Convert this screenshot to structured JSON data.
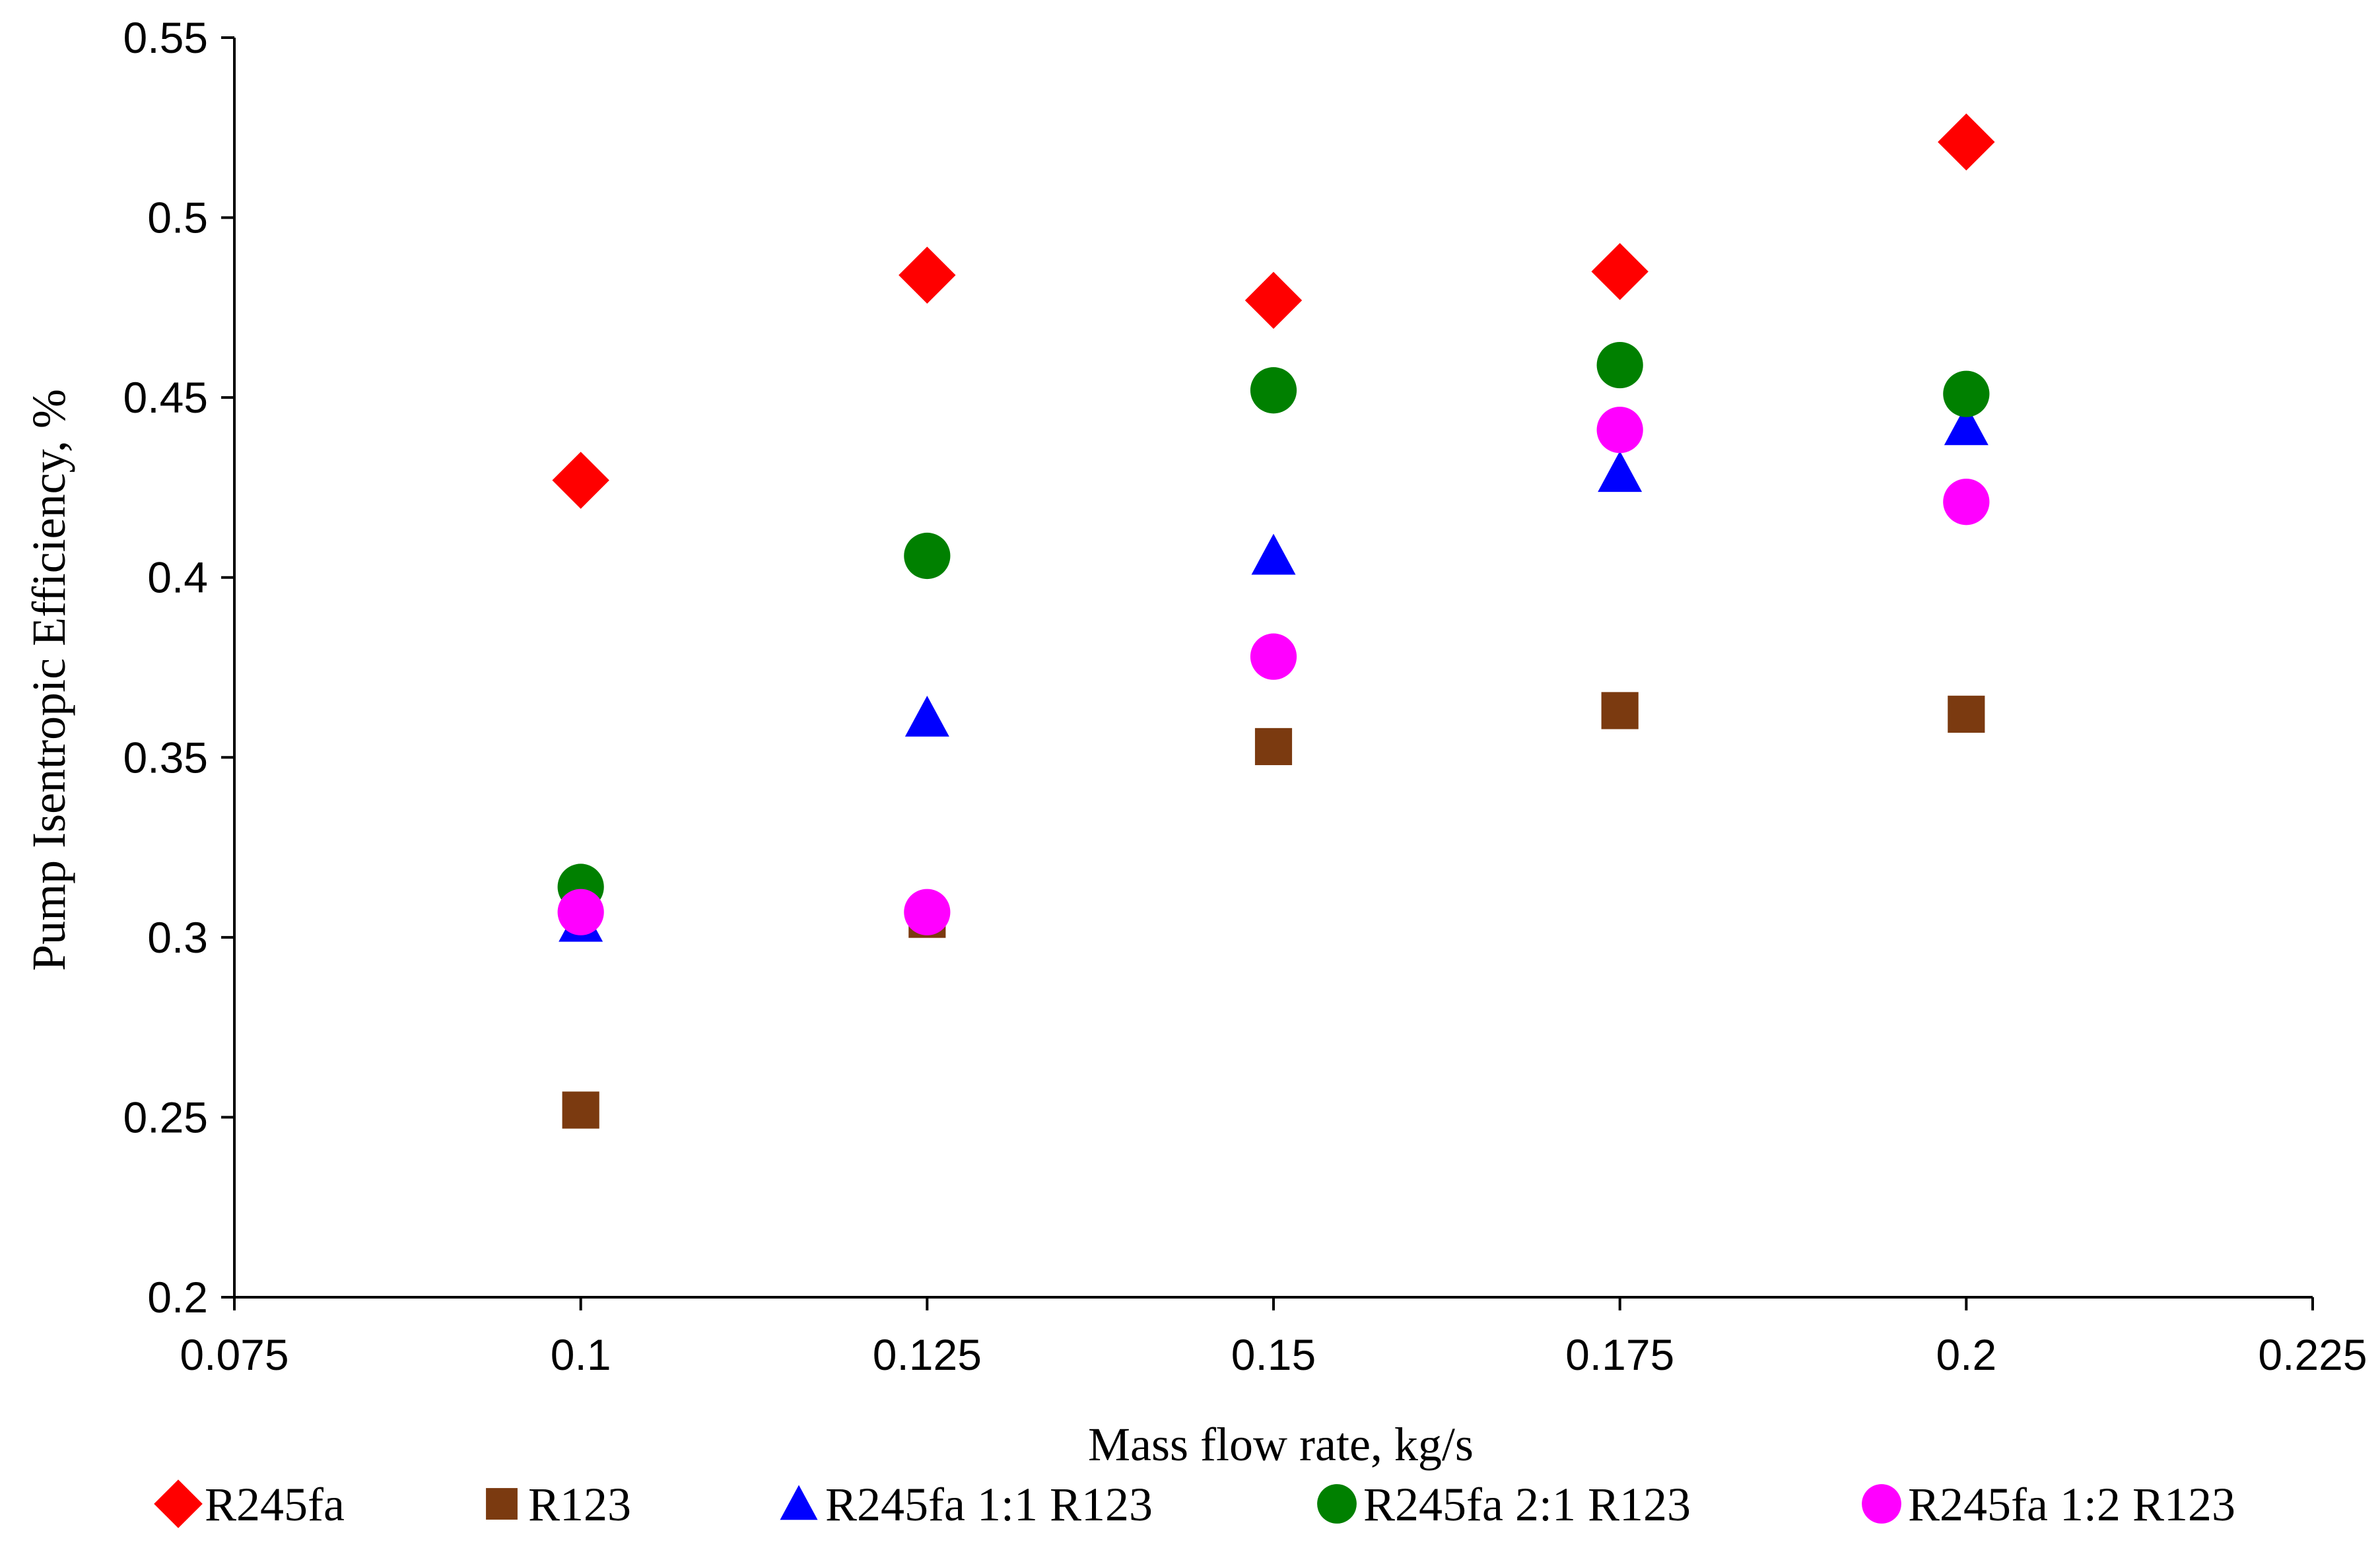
{
  "chart_data": {
    "type": "scatter",
    "title": "",
    "xlabel": "Mass flow rate, kg/s",
    "ylabel": "Pump Isentropic Efficiency, %",
    "xlim": [
      0.075,
      0.225
    ],
    "ylim": [
      0.2,
      0.55
    ],
    "xticks": [
      0.075,
      0.1,
      0.125,
      0.15,
      0.175,
      0.2,
      0.225
    ],
    "xtick_labels": [
      "0.075",
      "0.1",
      "0.125",
      "0.15",
      "0.175",
      "0.2",
      "0.225"
    ],
    "yticks": [
      0.2,
      0.25,
      0.3,
      0.35,
      0.4,
      0.45,
      0.5,
      0.55
    ],
    "ytick_labels": [
      "0.2",
      "0.25",
      "0.3",
      "0.35",
      "0.4",
      "0.45",
      "0.5",
      "0.55"
    ],
    "grid": false,
    "legend_position": "bottom",
    "x": [
      0.1,
      0.125,
      0.15,
      0.175,
      0.2
    ],
    "series": [
      {
        "name": "R245fa",
        "marker": "diamond",
        "color": "#FF0000",
        "values": [
          0.427,
          0.484,
          0.477,
          0.485,
          0.521
        ]
      },
      {
        "name": "R123",
        "marker": "square",
        "color": "#7B3A10",
        "values": [
          0.252,
          0.305,
          0.353,
          0.363,
          0.362
        ]
      },
      {
        "name": "R245fa 1:1 R123",
        "marker": "triangle",
        "color": "#0000FF",
        "values": [
          0.304,
          0.361,
          0.406,
          0.429,
          0.442
        ]
      },
      {
        "name": "R245fa 2:1 R123",
        "marker": "circle",
        "color": "#008000",
        "values": [
          0.314,
          0.406,
          0.452,
          0.459,
          0.451
        ]
      },
      {
        "name": "R245fa 1:2 R123",
        "marker": "circle",
        "color": "#FF00FF",
        "values": [
          0.307,
          0.307,
          0.378,
          0.441,
          0.421
        ]
      }
    ]
  }
}
